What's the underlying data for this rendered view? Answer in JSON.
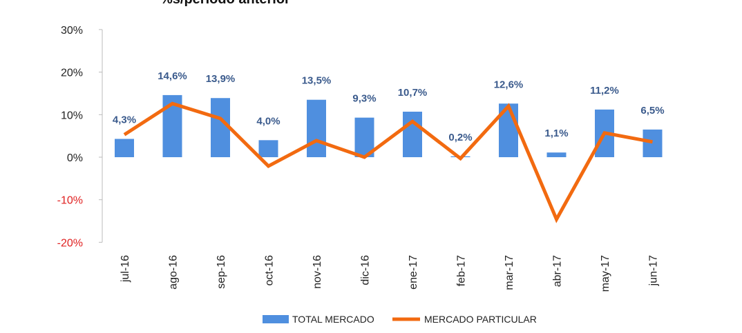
{
  "chart_data": {
    "type": "bar+line",
    "title": "%s/periodo anterior",
    "categories": [
      "jul-16",
      "ago-16",
      "sep-16",
      "oct-16",
      "nov-16",
      "dic-16",
      "ene-17",
      "feb-17",
      "mar-17",
      "abr-17",
      "may-17",
      "jun-17"
    ],
    "series": [
      {
        "name": "TOTAL MERCADO",
        "type": "bar",
        "color": "#4f8fdf",
        "values": [
          4.3,
          14.6,
          13.9,
          4.0,
          13.5,
          9.3,
          10.7,
          0.2,
          12.6,
          1.1,
          11.2,
          6.5
        ],
        "labels": [
          "4,3%",
          "14,6%",
          "13,9%",
          "4,0%",
          "13,5%",
          "9,3%",
          "10,7%",
          "0,2%",
          "12,6%",
          "1,1%",
          "11,2%",
          "6,5%"
        ]
      },
      {
        "name": "MERCADO PARTICULAR",
        "type": "line",
        "color": "#f26a10",
        "values": [
          5.3,
          12.6,
          9.1,
          -2.1,
          3.9,
          0.0,
          8.4,
          -0.3,
          12.0,
          -14.6,
          5.7,
          3.6
        ]
      }
    ],
    "yticks": [
      "30%",
      "20%",
      "10%",
      "0%",
      "-10%",
      "-20%"
    ],
    "ytick_values": [
      30,
      20,
      10,
      0,
      -10,
      -20
    ],
    "ylim": [
      -20,
      30
    ],
    "negative_tick_color": "#e02020",
    "legend": "bottom"
  }
}
